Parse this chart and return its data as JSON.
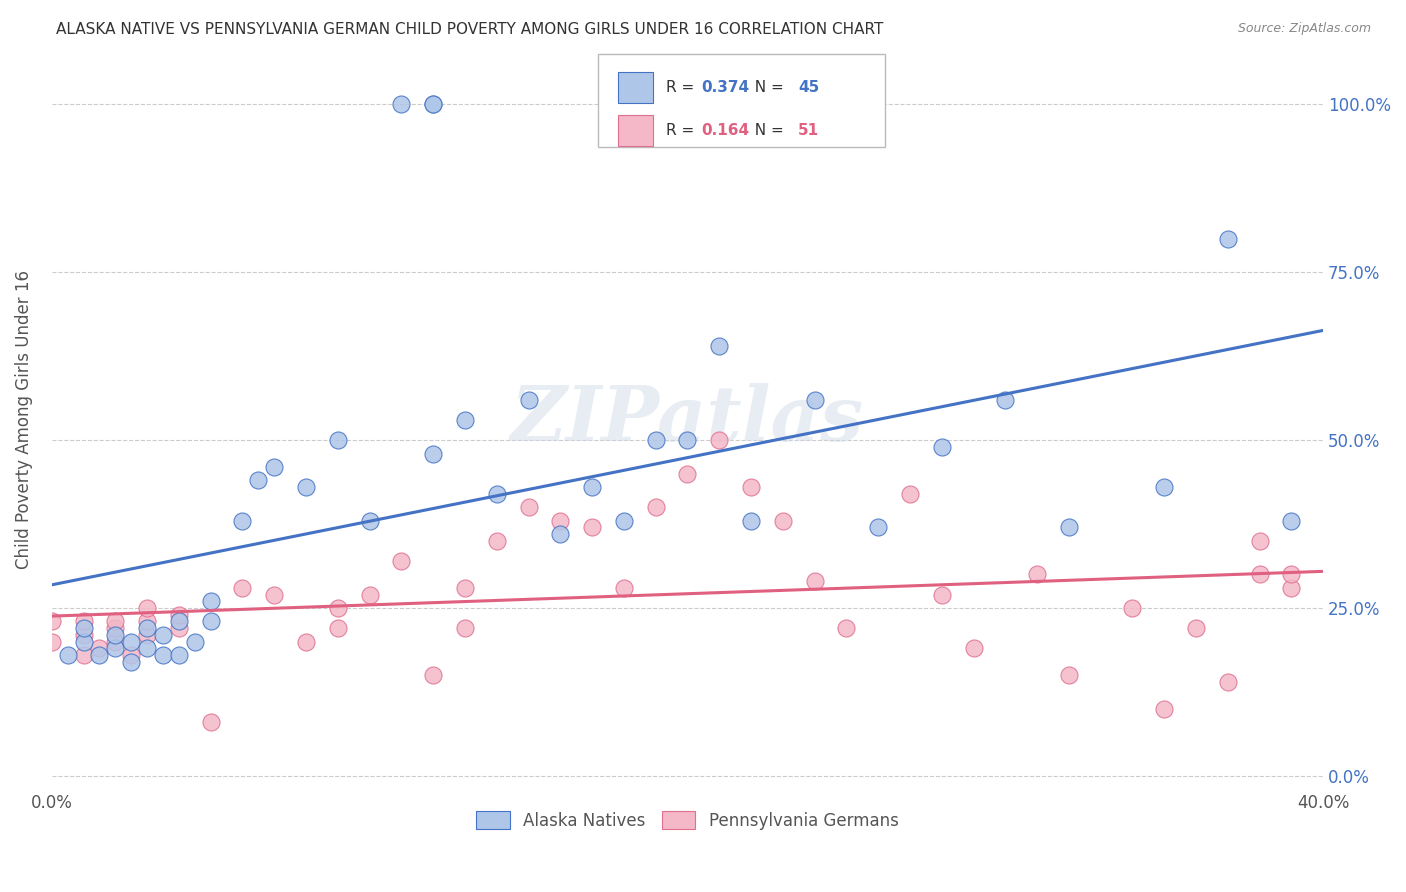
{
  "title": "ALASKA NATIVE VS PENNSYLVANIA GERMAN CHILD POVERTY AMONG GIRLS UNDER 16 CORRELATION CHART",
  "source": "Source: ZipAtlas.com",
  "ylabel": "Child Poverty Among Girls Under 16",
  "ytick_values": [
    0.0,
    0.25,
    0.5,
    0.75,
    1.0
  ],
  "ytick_labels": [
    "0.0%",
    "25.0%",
    "50.0%",
    "75.0%",
    "100.0%"
  ],
  "xlim": [
    0.0,
    0.4
  ],
  "ylim": [
    -0.02,
    1.08
  ],
  "alaska_color": "#aec6e8",
  "alaska_edge_color": "#4472c4",
  "pennsylvania_color": "#f4b8c8",
  "pennsylvania_edge_color": "#e07090",
  "alaska_line_color": "#4472c4",
  "pennsylvania_line_color": "#e06080",
  "watermark": "ZIPatlas",
  "legend_R_alaska": "0.374",
  "legend_N_alaska": "45",
  "legend_R_pennsylvania": "0.164",
  "legend_N_pennsylvania": "51",
  "background_color": "#ffffff",
  "grid_color": "#cccccc",
  "alaska_x": [
    0.005,
    0.01,
    0.01,
    0.015,
    0.02,
    0.02,
    0.025,
    0.025,
    0.03,
    0.03,
    0.035,
    0.035,
    0.04,
    0.04,
    0.045,
    0.05,
    0.05,
    0.06,
    0.065,
    0.07,
    0.08,
    0.09,
    0.1,
    0.11,
    0.12,
    0.12,
    0.12,
    0.13,
    0.14,
    0.15,
    0.16,
    0.17,
    0.18,
    0.19,
    0.2,
    0.21,
    0.22,
    0.24,
    0.26,
    0.28,
    0.3,
    0.32,
    0.35,
    0.37,
    0.39
  ],
  "alaska_y": [
    0.18,
    0.2,
    0.22,
    0.18,
    0.19,
    0.21,
    0.17,
    0.2,
    0.19,
    0.22,
    0.18,
    0.21,
    0.18,
    0.23,
    0.2,
    0.23,
    0.26,
    0.38,
    0.44,
    0.46,
    0.43,
    0.5,
    0.38,
    1.0,
    1.0,
    1.0,
    0.48,
    0.53,
    0.42,
    0.56,
    0.36,
    0.43,
    0.38,
    0.5,
    0.5,
    0.64,
    0.38,
    0.56,
    0.37,
    0.49,
    0.56,
    0.37,
    0.43,
    0.8,
    0.38
  ],
  "pennsylvania_x": [
    0.0,
    0.0,
    0.01,
    0.01,
    0.01,
    0.015,
    0.02,
    0.02,
    0.02,
    0.025,
    0.03,
    0.03,
    0.03,
    0.04,
    0.04,
    0.05,
    0.06,
    0.07,
    0.08,
    0.09,
    0.09,
    0.1,
    0.11,
    0.12,
    0.13,
    0.13,
    0.14,
    0.15,
    0.16,
    0.17,
    0.18,
    0.19,
    0.2,
    0.21,
    0.22,
    0.23,
    0.24,
    0.25,
    0.27,
    0.28,
    0.29,
    0.31,
    0.32,
    0.34,
    0.35,
    0.36,
    0.37,
    0.38,
    0.38,
    0.39,
    0.39
  ],
  "pennsylvania_y": [
    0.2,
    0.23,
    0.18,
    0.21,
    0.23,
    0.19,
    0.2,
    0.22,
    0.23,
    0.18,
    0.21,
    0.23,
    0.25,
    0.22,
    0.24,
    0.08,
    0.28,
    0.27,
    0.2,
    0.22,
    0.25,
    0.27,
    0.32,
    0.15,
    0.22,
    0.28,
    0.35,
    0.4,
    0.38,
    0.37,
    0.28,
    0.4,
    0.45,
    0.5,
    0.43,
    0.38,
    0.29,
    0.22,
    0.42,
    0.27,
    0.19,
    0.3,
    0.15,
    0.25,
    0.1,
    0.22,
    0.14,
    0.3,
    0.35,
    0.28,
    0.3
  ]
}
